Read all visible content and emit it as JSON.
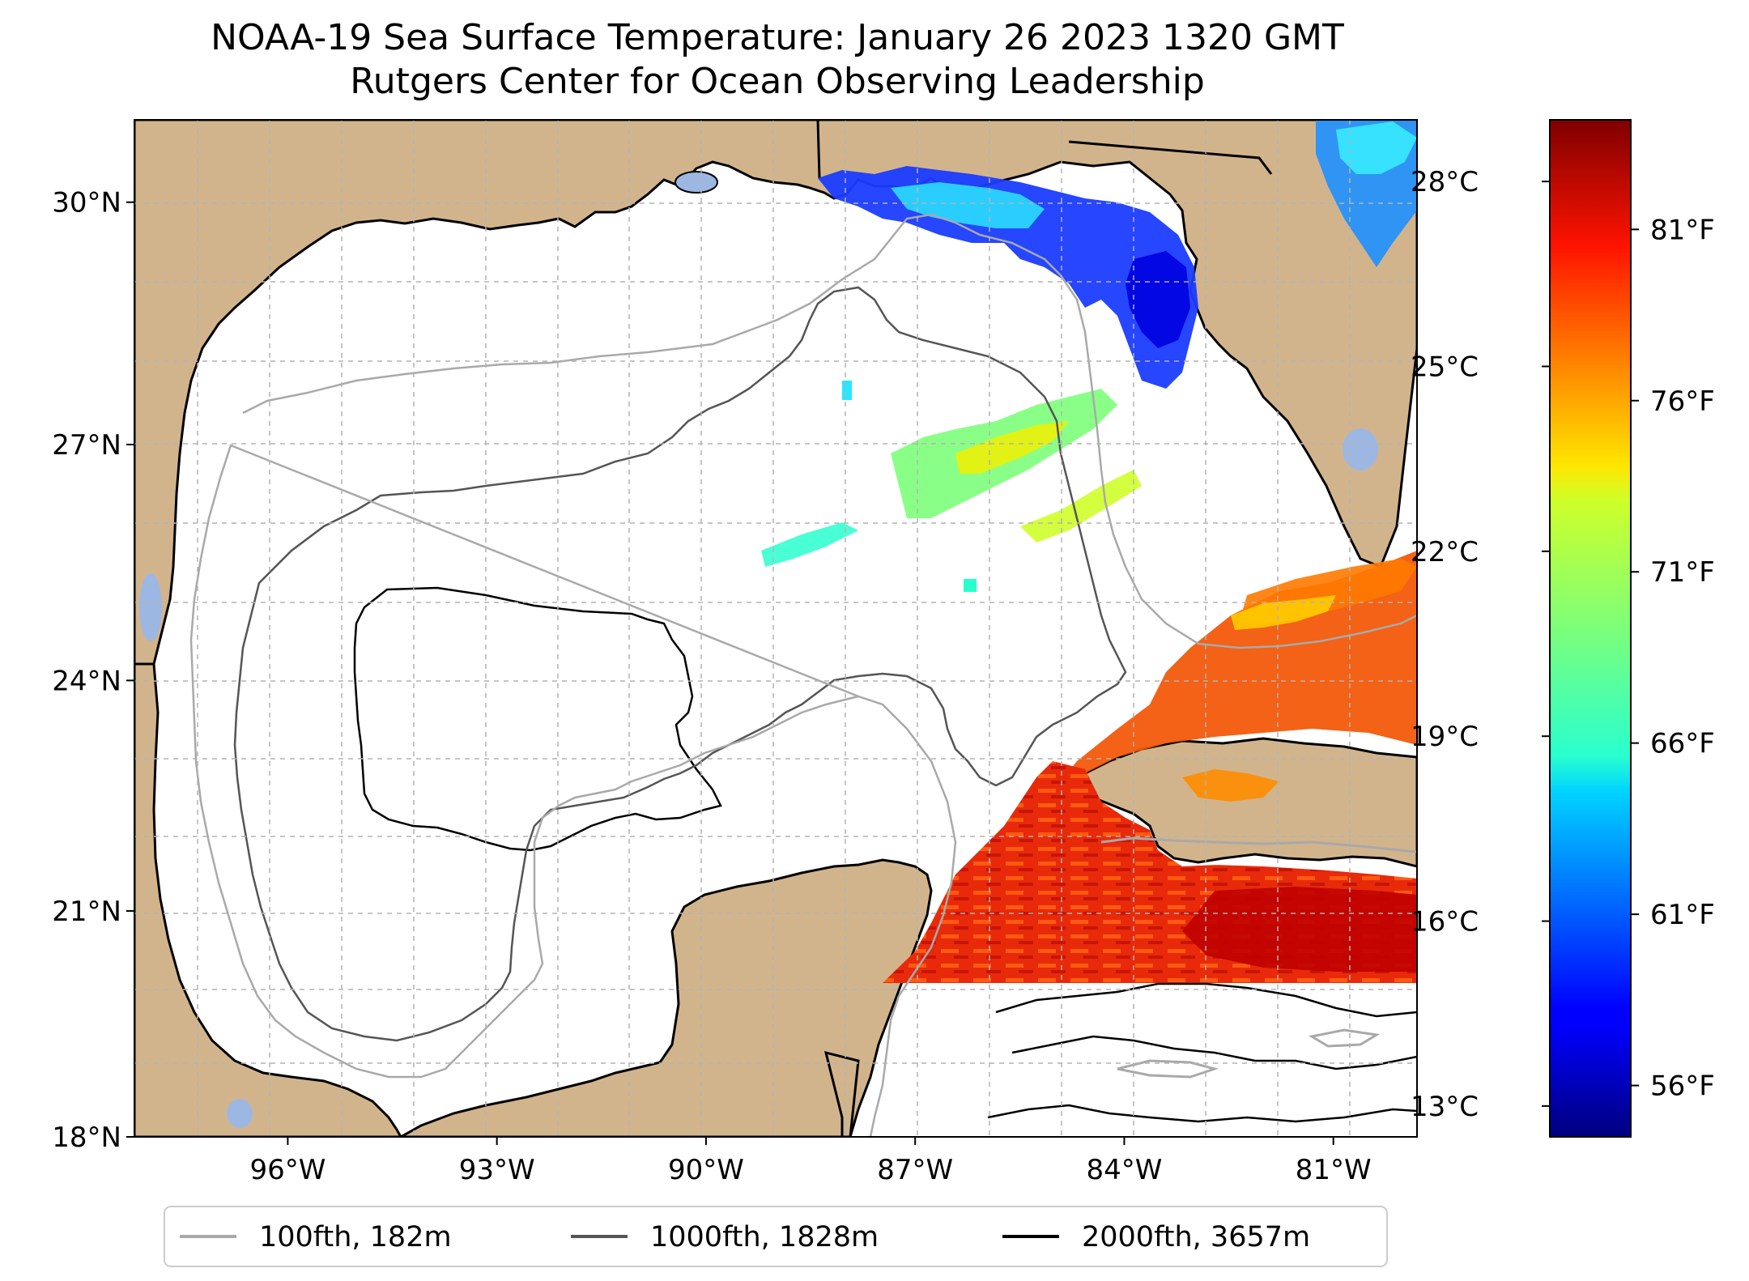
{
  "title": {
    "line1": "NOAA-19 Sea Surface Temperature: January 26 2023 1320 GMT",
    "line2": "Rutgers Center for Ocean Observing Leadership"
  },
  "map": {
    "lon_range": [
      -98.2,
      -79.8
    ],
    "lat_range": [
      18.0,
      31.0
    ],
    "lat_ticks": [
      {
        "value": 18,
        "label": "18°N"
      },
      {
        "value": 21,
        "label": "21°N"
      },
      {
        "value": 24,
        "label": "24°N"
      },
      {
        "value": 27,
        "label": "27°N"
      },
      {
        "value": 30,
        "label": "30°N"
      }
    ],
    "lon_ticks": [
      {
        "value": -96,
        "label": "96°W"
      },
      {
        "value": -93,
        "label": "93°W"
      },
      {
        "value": -90,
        "label": "90°W"
      },
      {
        "value": -87,
        "label": "87°W"
      },
      {
        "value": -84,
        "label": "84°W"
      },
      {
        "value": -81,
        "label": "81°W"
      }
    ],
    "land_color": "#d2b48c",
    "lake_color": "#9db7e3",
    "ocean_color": "#ffffff"
  },
  "colorbar": {
    "colormap": "jet",
    "range_c": [
      12.5,
      29.0
    ],
    "celsius_ticks": [
      {
        "value": 13,
        "label": "13°C"
      },
      {
        "value": 16,
        "label": "16°C"
      },
      {
        "value": 19,
        "label": "19°C"
      },
      {
        "value": 22,
        "label": "22°C"
      },
      {
        "value": 25,
        "label": "25°C"
      },
      {
        "value": 28,
        "label": "28°C"
      }
    ],
    "fahrenheit_ticks": [
      {
        "value": 56,
        "label": "56°F"
      },
      {
        "value": 61,
        "label": "61°F"
      },
      {
        "value": 66,
        "label": "66°F"
      },
      {
        "value": 71,
        "label": "71°F"
      },
      {
        "value": 76,
        "label": "76°F"
      },
      {
        "value": 81,
        "label": "81°F"
      }
    ]
  },
  "legend": [
    {
      "label": "100fth, 182m",
      "color": "#a9a9a9"
    },
    {
      "label": "1000fth, 1828m",
      "color": "#555555"
    },
    {
      "label": "2000fth, 3657m",
      "color": "#000000"
    }
  ]
}
